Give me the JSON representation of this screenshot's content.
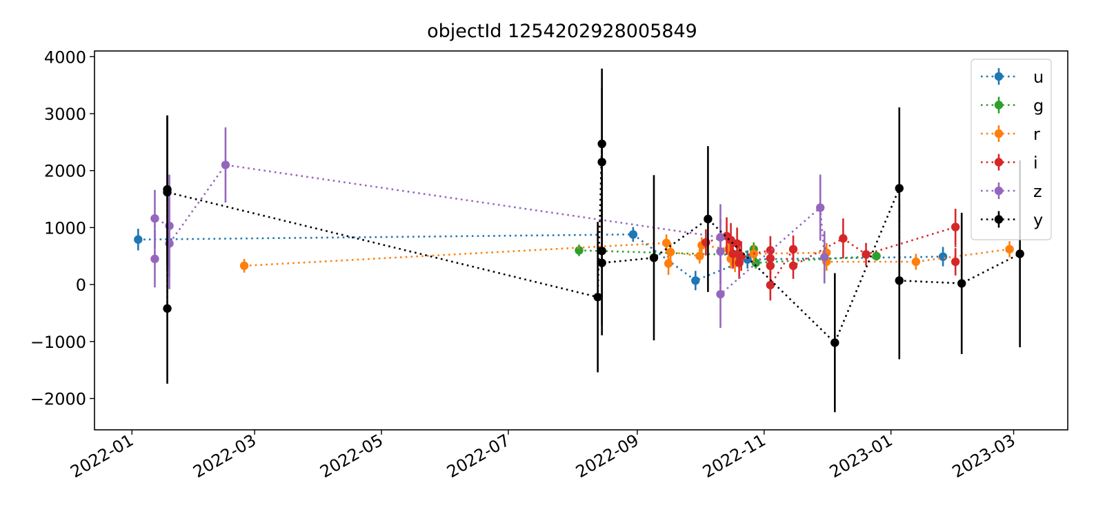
{
  "chart_data": {
    "type": "errorbar-line",
    "title": "objectId 1254202928005849",
    "xlabel": "",
    "ylabel": "",
    "x_axis": {
      "kind": "date",
      "min": "2021-12-14",
      "max": "2023-03-27",
      "ticks": [
        "2022-01",
        "2022-03",
        "2022-05",
        "2022-07",
        "2022-09",
        "2022-11",
        "2023-01",
        "2023-03"
      ]
    },
    "y_axis": {
      "min": -2550,
      "max": 4100,
      "ticks": [
        4000,
        3000,
        2000,
        1000,
        0,
        -1000,
        -2000
      ],
      "tick_labels": [
        "4000",
        "3000",
        "2000",
        "1000",
        "0",
        "−1000",
        "−2000"
      ]
    },
    "legend": {
      "position": "top-right"
    },
    "series": [
      {
        "name": "u",
        "color": "#1f77b4",
        "points": [
          {
            "x": "2022-01-04",
            "y": 790,
            "err": 190
          },
          {
            "x": "2022-08-30",
            "y": 880,
            "err": 130
          },
          {
            "x": "2022-09-29",
            "y": 70,
            "err": 170
          },
          {
            "x": "2022-10-24",
            "y": 440,
            "err": 160
          },
          {
            "x": "2023-01-26",
            "y": 490,
            "err": 170
          }
        ]
      },
      {
        "name": "g",
        "color": "#2ca02c",
        "points": [
          {
            "x": "2022-08-04",
            "y": 600,
            "err": 100
          },
          {
            "x": "2022-10-19",
            "y": 520,
            "err": 130
          },
          {
            "x": "2022-10-27",
            "y": 620,
            "err": 120
          },
          {
            "x": "2022-10-28",
            "y": 380,
            "err": 100
          },
          {
            "x": "2022-12-25",
            "y": 500,
            "err": 80
          }
        ]
      },
      {
        "name": "r",
        "color": "#ff7f0e",
        "points": [
          {
            "x": "2022-02-24",
            "y": 330,
            "err": 120
          },
          {
            "x": "2022-09-15",
            "y": 730,
            "err": 150
          },
          {
            "x": "2022-09-16",
            "y": 370,
            "err": 200
          },
          {
            "x": "2022-09-17",
            "y": 570,
            "err": 160
          },
          {
            "x": "2022-10-01",
            "y": 500,
            "err": 130
          },
          {
            "x": "2022-10-02",
            "y": 690,
            "err": 140
          },
          {
            "x": "2022-10-15",
            "y": 620,
            "err": 180
          },
          {
            "x": "2022-10-16",
            "y": 450,
            "err": 170
          },
          {
            "x": "2022-10-18",
            "y": 380,
            "err": 160
          },
          {
            "x": "2022-10-27",
            "y": 540,
            "err": 150
          },
          {
            "x": "2022-12-01",
            "y": 560,
            "err": 170
          },
          {
            "x": "2022-12-01",
            "y": 400,
            "err": 160
          },
          {
            "x": "2023-01-13",
            "y": 400,
            "err": 140
          },
          {
            "x": "2023-02-27",
            "y": 620,
            "err": 140
          }
        ]
      },
      {
        "name": "i",
        "color": "#d62728",
        "points": [
          {
            "x": "2022-10-04",
            "y": 740,
            "err": 230
          },
          {
            "x": "2022-10-14",
            "y": 850,
            "err": 330
          },
          {
            "x": "2022-10-16",
            "y": 780,
            "err": 300
          },
          {
            "x": "2022-10-17",
            "y": 540,
            "err": 260
          },
          {
            "x": "2022-10-19",
            "y": 720,
            "err": 280
          },
          {
            "x": "2022-10-20",
            "y": 380,
            "err": 280
          },
          {
            "x": "2022-10-21",
            "y": 500,
            "err": 260
          },
          {
            "x": "2022-11-04",
            "y": 600,
            "err": 250
          },
          {
            "x": "2022-11-04",
            "y": 330,
            "err": 260
          },
          {
            "x": "2022-11-04",
            "y": 460,
            "err": 260
          },
          {
            "x": "2022-11-04",
            "y": -10,
            "err": 270
          },
          {
            "x": "2022-11-15",
            "y": 620,
            "err": 240
          },
          {
            "x": "2022-11-15",
            "y": 330,
            "err": 230
          },
          {
            "x": "2022-12-09",
            "y": 810,
            "err": 350
          },
          {
            "x": "2022-12-20",
            "y": 530,
            "err": 200
          },
          {
            "x": "2023-02-01",
            "y": 1010,
            "err": 320
          },
          {
            "x": "2023-02-01",
            "y": 400,
            "err": 240
          }
        ]
      },
      {
        "name": "z",
        "color": "#9467bd",
        "points": [
          {
            "x": "2022-01-12",
            "y": 450,
            "err": 500
          },
          {
            "x": "2022-01-12",
            "y": 1160,
            "err": 500
          },
          {
            "x": "2022-01-19",
            "y": 1030,
            "err": 900
          },
          {
            "x": "2022-01-19",
            "y": 720,
            "err": 800
          },
          {
            "x": "2022-02-15",
            "y": 2100,
            "err": 660
          },
          {
            "x": "2022-10-11",
            "y": 830,
            "err": 580
          },
          {
            "x": "2022-10-11",
            "y": 580,
            "err": 570
          },
          {
            "x": "2022-10-11",
            "y": -170,
            "err": 590
          },
          {
            "x": "2022-11-28",
            "y": 1350,
            "err": 580
          },
          {
            "x": "2022-11-30",
            "y": 480,
            "err": 460
          }
        ]
      },
      {
        "name": "y",
        "color": "#000000",
        "points": [
          {
            "x": "2022-01-18",
            "y": -420,
            "err": 1320
          },
          {
            "x": "2022-01-18",
            "y": 1670,
            "err": 1300
          },
          {
            "x": "2022-01-18",
            "y": 1620,
            "err": 1340
          },
          {
            "x": "2022-08-13",
            "y": -220,
            "err": 1320
          },
          {
            "x": "2022-08-15",
            "y": 2470,
            "err": 1320
          },
          {
            "x": "2022-08-15",
            "y": 2150,
            "err": 1300
          },
          {
            "x": "2022-08-15",
            "y": 590,
            "err": 1300
          },
          {
            "x": "2022-08-15",
            "y": 380,
            "err": 1270
          },
          {
            "x": "2022-09-09",
            "y": 470,
            "err": 1450
          },
          {
            "x": "2022-10-05",
            "y": 1150,
            "err": 1280
          },
          {
            "x": "2022-12-05",
            "y": -1020,
            "err": 1220
          },
          {
            "x": "2023-01-05",
            "y": 1690,
            "err": 1420
          },
          {
            "x": "2023-01-05",
            "y": 70,
            "err": 1380
          },
          {
            "x": "2023-02-04",
            "y": 20,
            "err": 1240
          },
          {
            "x": "2023-03-04",
            "y": 540,
            "err": 1640
          }
        ]
      }
    ]
  }
}
